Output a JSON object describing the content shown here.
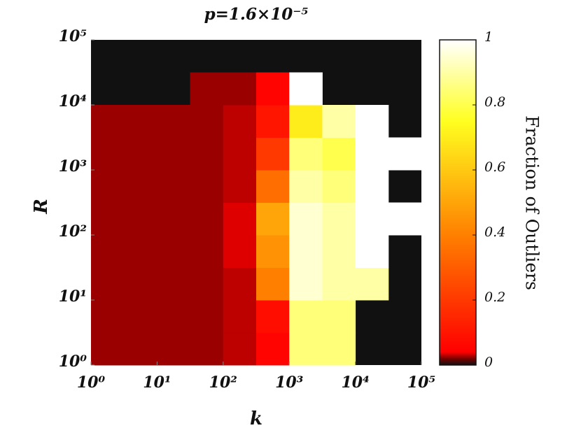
{
  "chart_data": {
    "type": "heatmap",
    "title": "p=1.6×10⁻⁵",
    "x_label": "k",
    "y_label": "R",
    "colorbar_label": "Fraction of Outliers",
    "log_x": true,
    "log_y": true,
    "background": "#111111",
    "colormap": [
      {
        "at": 0,
        "color": "#111111"
      },
      {
        "at": 0.02,
        "color": "#7a0000"
      },
      {
        "at": 0.04,
        "color": "#ff0000"
      },
      {
        "at": 0.4,
        "color": "#ff8000"
      },
      {
        "at": 0.75,
        "color": "#ffff20"
      },
      {
        "at": 1,
        "color": "#ffffff"
      }
    ],
    "x_bins": [
      1,
      3.16,
      10,
      31.6,
      100,
      316,
      1000,
      3162,
      10000,
      31623,
      100000
    ],
    "y_bins": [
      1,
      3.16,
      10,
      31.6,
      100,
      316,
      1000,
      3162,
      10000,
      31623,
      100000
    ],
    "z": [
      [
        0.025,
        0.025,
        0.025,
        0.025,
        0.03,
        0.05,
        0.85,
        0.85,
        null,
        null
      ],
      [
        0.025,
        0.025,
        0.025,
        0.025,
        0.03,
        0.08,
        0.85,
        0.85,
        null,
        null
      ],
      [
        0.025,
        0.025,
        0.025,
        0.025,
        0.03,
        0.4,
        0.95,
        0.9,
        0.9,
        null
      ],
      [
        0.025,
        0.025,
        0.025,
        0.025,
        0.035,
        0.45,
        0.95,
        0.9,
        1,
        null
      ],
      [
        0.025,
        0.025,
        0.025,
        0.025,
        0.035,
        0.5,
        0.95,
        0.9,
        1,
        1
      ],
      [
        0.025,
        0.025,
        0.025,
        0.025,
        0.03,
        0.35,
        0.9,
        0.85,
        1,
        null
      ],
      [
        0.025,
        0.025,
        0.025,
        0.025,
        0.03,
        0.2,
        0.85,
        0.8,
        1,
        1
      ],
      [
        0.025,
        0.025,
        0.025,
        0.025,
        0.03,
        0.1,
        0.7,
        0.9,
        1,
        null
      ],
      [
        null,
        null,
        null,
        0.025,
        0.025,
        0.05,
        1,
        null,
        null,
        null
      ],
      [
        null,
        null,
        null,
        null,
        null,
        null,
        null,
        null,
        null,
        null
      ]
    ],
    "xlim": [
      1,
      100000
    ],
    "ylim": [
      1,
      100000
    ],
    "xticks": [
      {
        "value": 1,
        "label": "10⁰"
      },
      {
        "value": 10,
        "label": "10¹"
      },
      {
        "value": 100,
        "label": "10²"
      },
      {
        "value": 1000,
        "label": "10³"
      },
      {
        "value": 10000,
        "label": "10⁴"
      },
      {
        "value": 100000,
        "label": "10⁵"
      }
    ],
    "yticks": [
      {
        "value": 1,
        "label": "10⁰"
      },
      {
        "value": 10,
        "label": "10¹"
      },
      {
        "value": 100,
        "label": "10²"
      },
      {
        "value": 1000,
        "label": "10³"
      },
      {
        "value": 10000,
        "label": "10⁴"
      },
      {
        "value": 100000,
        "label": "10⁵"
      }
    ],
    "clim": [
      0,
      1
    ],
    "cticks": [
      0,
      0.2,
      0.4,
      0.6,
      0.8,
      1
    ]
  }
}
